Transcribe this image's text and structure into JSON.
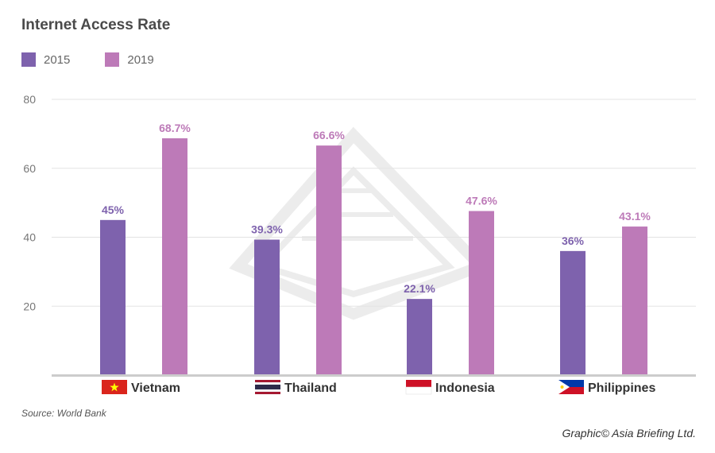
{
  "chart_data": {
    "type": "bar",
    "title": "Internet Access Rate",
    "categories": [
      "Vietnam",
      "Thailand",
      "Indonesia",
      "Philippines"
    ],
    "series": [
      {
        "name": "2015",
        "color": "#7e62ad",
        "values": [
          45,
          39.3,
          22.1,
          36
        ],
        "labels": [
          "45%",
          "39.3%",
          "22.1%",
          "36%"
        ]
      },
      {
        "name": "2019",
        "color": "#bd7ab8",
        "values": [
          68.7,
          66.6,
          47.6,
          43.1
        ],
        "labels": [
          "68.7%",
          "66.6%",
          "47.6%",
          "43.1%"
        ]
      }
    ],
    "yticks": [
      20,
      40,
      60,
      80
    ],
    "ylim": [
      0,
      80
    ],
    "grid": true,
    "legend": "top-left",
    "flags": [
      "vietnam-flag-icon",
      "thailand-flag-icon",
      "indonesia-flag-icon",
      "philippines-flag-icon"
    ]
  },
  "source": "Source: World Bank",
  "credit": "Graphic© Asia Briefing Ltd."
}
